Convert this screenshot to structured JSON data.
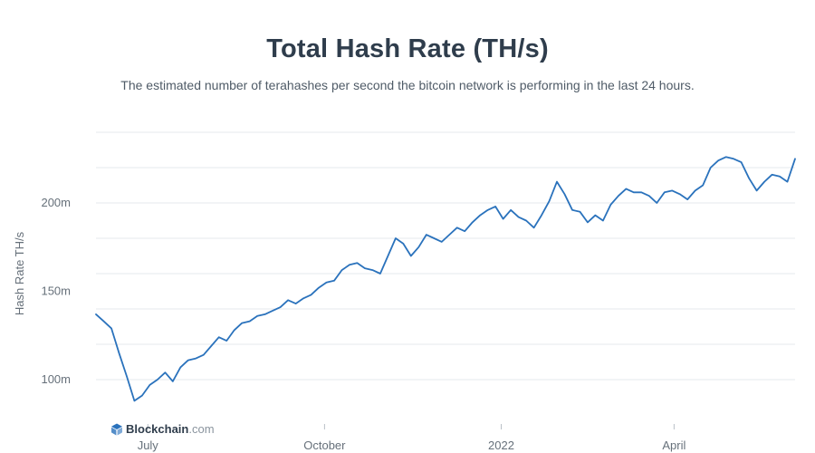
{
  "colors": {
    "line": "#2a72bc",
    "grid": "#e6e9ed",
    "title": "#2f3d4c",
    "text": "#66707a",
    "brand_icon": "#2a72bc"
  },
  "brand": {
    "name": "Blockchain",
    "suffix": ".com",
    "icon": "blockchain-logo-icon"
  },
  "chart_data": {
    "type": "line",
    "title": "Total Hash Rate (TH/s)",
    "subtitle": "The estimated number of terahashes per second the bitcoin network is performing in the last 24 hours.",
    "xlabel": "",
    "ylabel": "Hash Rate TH/s",
    "ylim": [
      80,
      240
    ],
    "yticks": [
      100,
      150,
      200
    ],
    "ytick_labels": [
      "100m",
      "150m",
      "200m"
    ],
    "grid": true,
    "legend": "none",
    "xlim": [
      "2021-06-04",
      "2022-06-03"
    ],
    "xticks": [
      "2021-07-01",
      "2021-10-01",
      "2022-01-01",
      "2022-04-01"
    ],
    "xtick_labels": [
      "July",
      "October",
      "2022",
      "April"
    ],
    "series": [
      {
        "x": [
          "2021-06-04",
          "2021-06-08",
          "2021-06-12",
          "2021-06-16",
          "2021-06-20",
          "2021-06-24",
          "2021-06-28",
          "2021-07-02",
          "2021-07-06",
          "2021-07-10",
          "2021-07-14",
          "2021-07-18",
          "2021-07-22",
          "2021-07-26",
          "2021-07-30",
          "2021-08-03",
          "2021-08-07",
          "2021-08-11",
          "2021-08-15",
          "2021-08-19",
          "2021-08-23",
          "2021-08-27",
          "2021-08-31",
          "2021-09-04",
          "2021-09-08",
          "2021-09-12",
          "2021-09-16",
          "2021-09-20",
          "2021-09-24",
          "2021-09-28",
          "2021-10-02",
          "2021-10-06",
          "2021-10-10",
          "2021-10-14",
          "2021-10-18",
          "2021-10-22",
          "2021-10-26",
          "2021-10-30",
          "2021-11-03",
          "2021-11-07",
          "2021-11-11",
          "2021-11-15",
          "2021-11-19",
          "2021-11-23",
          "2021-11-27",
          "2021-12-01",
          "2021-12-05",
          "2021-12-09",
          "2021-12-13",
          "2021-12-17",
          "2021-12-21",
          "2021-12-25",
          "2021-12-29",
          "2022-01-02",
          "2022-01-06",
          "2022-01-10",
          "2022-01-14",
          "2022-01-18",
          "2022-01-22",
          "2022-01-26",
          "2022-01-30",
          "2022-02-03",
          "2022-02-07",
          "2022-02-11",
          "2022-02-15",
          "2022-02-19",
          "2022-02-23",
          "2022-02-27",
          "2022-03-03",
          "2022-03-07",
          "2022-03-11",
          "2022-03-15",
          "2022-03-19",
          "2022-03-23",
          "2022-03-27",
          "2022-03-31",
          "2022-04-04",
          "2022-04-08",
          "2022-04-12",
          "2022-04-16",
          "2022-04-20",
          "2022-04-24",
          "2022-04-28",
          "2022-05-02",
          "2022-05-06",
          "2022-05-10",
          "2022-05-14",
          "2022-05-18",
          "2022-05-22",
          "2022-05-26",
          "2022-05-30",
          "2022-06-03"
        ],
        "values": [
          137,
          133,
          129,
          115,
          102,
          88,
          91,
          97,
          100,
          104,
          99,
          107,
          111,
          112,
          114,
          119,
          124,
          122,
          128,
          132,
          133,
          136,
          137,
          139,
          141,
          145,
          143,
          146,
          148,
          152,
          155,
          156,
          162,
          165,
          166,
          163,
          162,
          160,
          170,
          180,
          177,
          170,
          175,
          182,
          180,
          178,
          182,
          186,
          184,
          189,
          193,
          196,
          198,
          191,
          196,
          192,
          190,
          186,
          193,
          201,
          212,
          205,
          196,
          195,
          189,
          193,
          190,
          199,
          204,
          208,
          206,
          206,
          204,
          200,
          206,
          207,
          205,
          202,
          207,
          210,
          220,
          224,
          226,
          225,
          223,
          214,
          207,
          212,
          216,
          215,
          212,
          225
        ]
      }
    ]
  }
}
